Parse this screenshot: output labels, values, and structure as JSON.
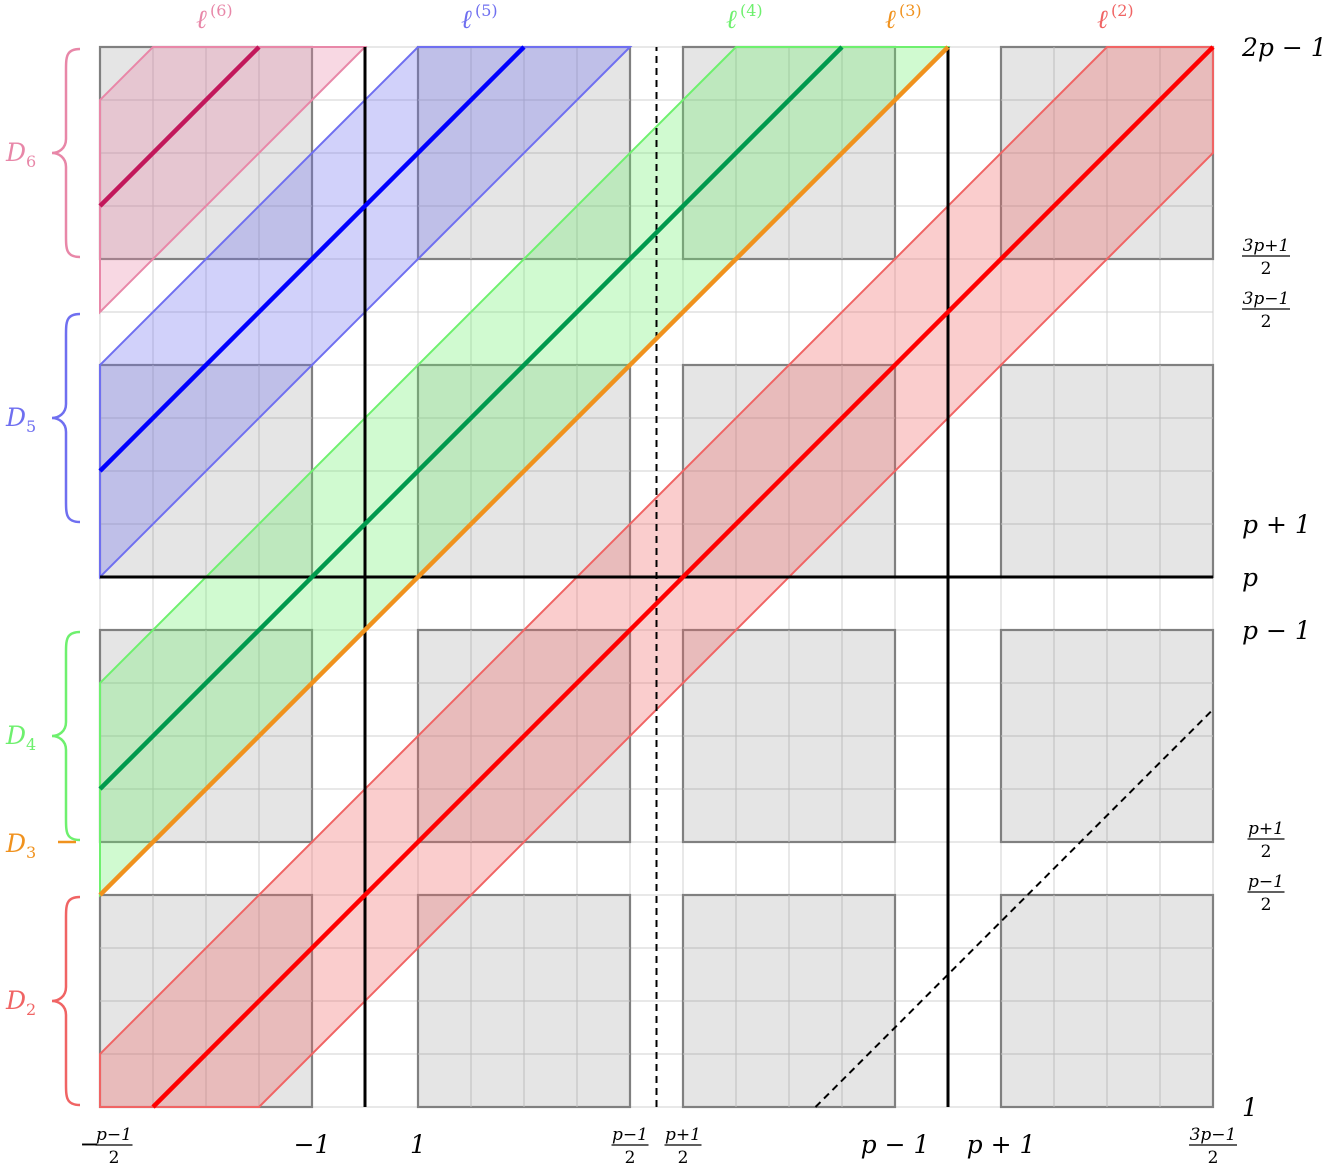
{
  "diagram": {
    "grid": {
      "x_min": -6,
      "x_max": 15,
      "y_min": 1,
      "y_max": 21
    },
    "box_columns": [
      [
        -6,
        -2
      ],
      [
        0,
        4
      ],
      [
        5,
        9
      ],
      [
        11,
        15
      ]
    ],
    "box_rows": [
      [
        1,
        5
      ],
      [
        6,
        10
      ],
      [
        11,
        15
      ],
      [
        17,
        21
      ]
    ],
    "top_band_columns": [
      [
        -6,
        -2
      ],
      [
        0,
        4
      ],
      [
        5,
        9
      ],
      [
        11,
        15
      ]
    ],
    "vertical_lines": [
      {
        "x": -1,
        "style": "solid"
      },
      {
        "x": 10,
        "style": "solid"
      },
      {
        "x": 4.5,
        "style": "dashed"
      }
    ],
    "horizontal_lines": [
      {
        "y": 11,
        "style": "solid"
      }
    ],
    "diagonal": {
      "style": "dashed",
      "offset": -6.5
    },
    "bands": [
      {
        "id": "l6",
        "offset": 24,
        "half_width": 2,
        "x_from": -6,
        "x_to": -2,
        "y_from": 17,
        "y_to": 21,
        "color": "#e887a8",
        "line_color": "#c2185b"
      },
      {
        "id": "l5",
        "offset": 19,
        "half_width": 2,
        "x_from": -6,
        "x_to": 4,
        "y_from": 12,
        "y_to": 21,
        "color": "#6f6ff0",
        "line_color": "#0000ff"
      },
      {
        "id": "l4",
        "offset": 13,
        "half_width": 2,
        "x_from": -6,
        "x_to": 9,
        "y_from": 4,
        "y_to": 21,
        "color": "#6ef06e",
        "line_color": "#00994d"
      },
      {
        "id": "l3",
        "offset": 11,
        "half_width": 0,
        "x_from": -6,
        "x_to": 10,
        "y_from": 5,
        "y_to": 21,
        "color": "#f0921e",
        "line_color": "#f0921e"
      },
      {
        "id": "l2",
        "offset": 6,
        "half_width": 2,
        "x_from": -6,
        "x_to": 15,
        "y_from": 0,
        "y_to": 21,
        "color": "#f06464",
        "line_color": "#ff0000"
      }
    ]
  },
  "line_labels": [
    {
      "id": "l6",
      "base": "ℓ",
      "sup": "(6)",
      "color": "#e887a8",
      "at_x": -4
    },
    {
      "id": "l5",
      "base": "ℓ",
      "sup": "(5)",
      "color": "#6f6ff0",
      "at_x": 1
    },
    {
      "id": "l4",
      "base": "ℓ",
      "sup": "(4)",
      "color": "#6ef06e",
      "at_x": 6
    },
    {
      "id": "l3",
      "base": "ℓ",
      "sup": "(3)",
      "color": "#f0921e",
      "at_x": 9
    },
    {
      "id": "l2",
      "base": "ℓ",
      "sup": "(2)",
      "color": "#f06464",
      "at_x": 13
    }
  ],
  "region_labels": [
    {
      "id": "D6",
      "base": "D",
      "sub": "6",
      "color": "#e887a8",
      "y_from": 17,
      "y_to": 21
    },
    {
      "id": "D5",
      "base": "D",
      "sub": "5",
      "color": "#6f6ff0",
      "y_from": 6,
      "y_to": 10,
      "row": "upper"
    },
    {
      "id": "D4",
      "base": "D",
      "sub": "4",
      "color": "#6ef06e",
      "y_from": 11,
      "y_to": 15,
      "row": "mid"
    },
    {
      "id": "D3",
      "base": "D",
      "sub": "3",
      "color": "#f0921e",
      "y_from": 5,
      "y_to": 5
    },
    {
      "id": "D2",
      "base": "D",
      "sub": "2",
      "color": "#f06464",
      "y_from": 1,
      "y_to": 5
    }
  ],
  "y_labels": [
    {
      "text": "2p − 1",
      "at": 21
    },
    {
      "num": "3p+1",
      "den": "2",
      "at": 17
    },
    {
      "num": "3p−1",
      "den": "2",
      "at": 16
    },
    {
      "text": "p + 1",
      "at": 12
    },
    {
      "text": "p",
      "at": 11
    },
    {
      "text": "p − 1",
      "at": 10
    },
    {
      "num": "p+1",
      "den": "2",
      "at": 6
    },
    {
      "num": "p−1",
      "den": "2",
      "at": 5
    },
    {
      "text": "1",
      "at": 1
    }
  ],
  "x_labels": [
    {
      "prefix": "−",
      "num": "p−1",
      "den": "2",
      "at": -6
    },
    {
      "text": "−1",
      "at": -2
    },
    {
      "text": "1",
      "at": 0
    },
    {
      "num": "p−1",
      "den": "2",
      "at": 4
    },
    {
      "num": "p+1",
      "den": "2",
      "at": 5
    },
    {
      "text": "p − 1",
      "at": 9
    },
    {
      "text": "p + 1",
      "at": 11
    },
    {
      "num": "3p−1",
      "den": "2",
      "at": 15
    }
  ]
}
